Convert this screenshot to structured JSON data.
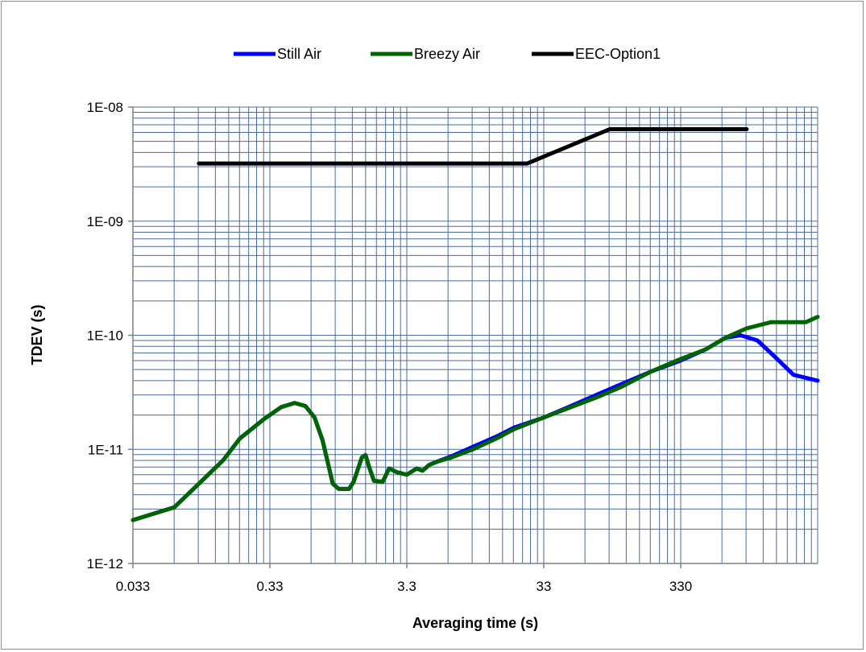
{
  "chart_data": {
    "type": "line",
    "title": "",
    "xlabel": "Averaging time (s)",
    "ylabel": "TDEV (s)",
    "x_scale": "log",
    "y_scale": "log",
    "xlim": [
      0.033,
      3300
    ],
    "ylim": [
      1e-12,
      1e-08
    ],
    "x_ticks": [
      0.033,
      0.33,
      3.3,
      33,
      330
    ],
    "x_tick_labels": [
      "0.033",
      "0.33",
      "3.3",
      "33",
      "330"
    ],
    "y_ticks": [
      1e-12,
      1e-11,
      1e-10,
      1e-09,
      1e-08
    ],
    "y_tick_labels": [
      "1E-12",
      "1E-11",
      "1E-10",
      "1E-09",
      "1E-08"
    ],
    "grid": true,
    "legend_position": "top",
    "series": [
      {
        "name": "Still Air",
        "color": "#0000ff",
        "points": [
          [
            0.033,
            2.4e-12
          ],
          [
            0.066,
            3.1e-12
          ],
          [
            0.1,
            5e-12
          ],
          [
            0.15,
            8e-12
          ],
          [
            0.2,
            1.25e-11
          ],
          [
            0.3,
            1.85e-11
          ],
          [
            0.4,
            2.35e-11
          ],
          [
            0.5,
            2.55e-11
          ],
          [
            0.6,
            2.4e-11
          ],
          [
            0.7,
            1.9e-11
          ],
          [
            0.8,
            1.2e-11
          ],
          [
            0.95,
            5e-12
          ],
          [
            1.05,
            4.5e-12
          ],
          [
            1.25,
            4.5e-12
          ],
          [
            1.35,
            5.2e-12
          ],
          [
            1.55,
            8.5e-12
          ],
          [
            1.65,
            8.9e-12
          ],
          [
            1.75,
            7e-12
          ],
          [
            1.9,
            5.3e-12
          ],
          [
            2.2,
            5.2e-12
          ],
          [
            2.45,
            6.8e-12
          ],
          [
            2.8,
            6.3e-12
          ],
          [
            3.3,
            6e-12
          ],
          [
            3.9,
            6.8e-12
          ],
          [
            4.3,
            6.5e-12
          ],
          [
            4.8,
            7.3e-12
          ],
          [
            5.5,
            7.8e-12
          ],
          [
            7,
            8.7e-12
          ],
          [
            10,
            1.05e-11
          ],
          [
            15,
            1.3e-11
          ],
          [
            20,
            1.55e-11
          ],
          [
            33,
            1.9e-11
          ],
          [
            50,
            2.35e-11
          ],
          [
            80,
            3e-11
          ],
          [
            120,
            3.7e-11
          ],
          [
            200,
            4.8e-11
          ],
          [
            330,
            6e-11
          ],
          [
            500,
            7.5e-11
          ],
          [
            700,
            9.5e-11
          ],
          [
            900,
            1e-10
          ],
          [
            1200,
            9e-11
          ],
          [
            1600,
            6.5e-11
          ],
          [
            2200,
            4.5e-11
          ],
          [
            3300,
            4e-11
          ]
        ]
      },
      {
        "name": "Breezy Air",
        "color": "#006400",
        "points": [
          [
            0.033,
            2.4e-12
          ],
          [
            0.066,
            3.1e-12
          ],
          [
            0.1,
            5e-12
          ],
          [
            0.15,
            8e-12
          ],
          [
            0.2,
            1.25e-11
          ],
          [
            0.3,
            1.85e-11
          ],
          [
            0.4,
            2.35e-11
          ],
          [
            0.5,
            2.55e-11
          ],
          [
            0.6,
            2.4e-11
          ],
          [
            0.7,
            1.9e-11
          ],
          [
            0.8,
            1.2e-11
          ],
          [
            0.95,
            5e-12
          ],
          [
            1.05,
            4.5e-12
          ],
          [
            1.25,
            4.5e-12
          ],
          [
            1.35,
            5.2e-12
          ],
          [
            1.55,
            8.5e-12
          ],
          [
            1.65,
            8.9e-12
          ],
          [
            1.75,
            7e-12
          ],
          [
            1.9,
            5.3e-12
          ],
          [
            2.2,
            5.2e-12
          ],
          [
            2.45,
            6.8e-12
          ],
          [
            2.8,
            6.3e-12
          ],
          [
            3.3,
            6e-12
          ],
          [
            3.9,
            6.8e-12
          ],
          [
            4.3,
            6.5e-12
          ],
          [
            4.8,
            7.3e-12
          ],
          [
            5.5,
            7.8e-12
          ],
          [
            7,
            8.5e-12
          ],
          [
            10,
            1e-11
          ],
          [
            15,
            1.25e-11
          ],
          [
            20,
            1.5e-11
          ],
          [
            33,
            1.9e-11
          ],
          [
            50,
            2.3e-11
          ],
          [
            80,
            2.85e-11
          ],
          [
            120,
            3.5e-11
          ],
          [
            200,
            4.8e-11
          ],
          [
            330,
            6.2e-11
          ],
          [
            500,
            7.5e-11
          ],
          [
            700,
            9.5e-11
          ],
          [
            1000,
            1.15e-10
          ],
          [
            1500,
            1.3e-10
          ],
          [
            2000,
            1.3e-10
          ],
          [
            2700,
            1.3e-10
          ],
          [
            3300,
            1.45e-10
          ]
        ]
      },
      {
        "name": "EEC-Option1",
        "color": "#000000",
        "points": [
          [
            0.1,
            3.2e-09
          ],
          [
            25,
            3.2e-09
          ],
          [
            100,
            6.4e-09
          ],
          [
            1000,
            6.4e-09
          ]
        ]
      }
    ]
  }
}
